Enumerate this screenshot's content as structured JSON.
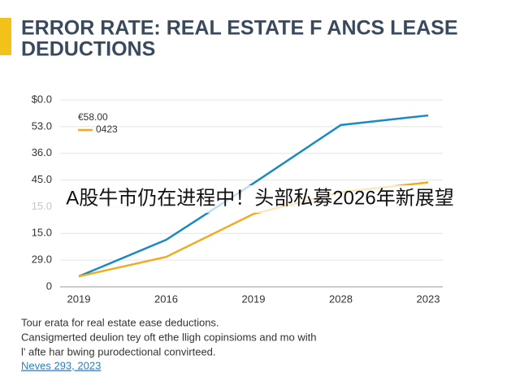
{
  "chart_data": {
    "type": "line",
    "title_line1": "ERROR RATE: REAL ESTATE F ANCS LEASE",
    "title_line2": "DEDUCTIONS",
    "categories": [
      "2019",
      "2016",
      "2019",
      "2028",
      "2023"
    ],
    "y_labels": [
      "0",
      "29.0",
      "15.0",
      "15.0",
      "45.0",
      "36.0",
      "53.0",
      "$0.0"
    ],
    "ylim": [
      0,
      7
    ],
    "series": [
      {
        "name": "€58.00",
        "color": "#1a8ac4",
        "values": [
          0.39,
          1.76,
          3.88,
          6.06,
          6.42
        ]
      },
      {
        "name": "0423",
        "color": "#f0ac1e",
        "values": [
          0.39,
          1.12,
          2.73,
          3.55,
          3.91
        ]
      }
    ],
    "overlay_text": "A股牛市仍在进程中！头部私募2026年新展望",
    "notes": [
      "Tour erata for real estate ease deductions.",
      "Cansigmerted deulion tey oft ethe lligh copinsioms and mo with",
      "l' afte har bwing purodectional convirteed."
    ],
    "source": "Neves 293, 2023"
  }
}
